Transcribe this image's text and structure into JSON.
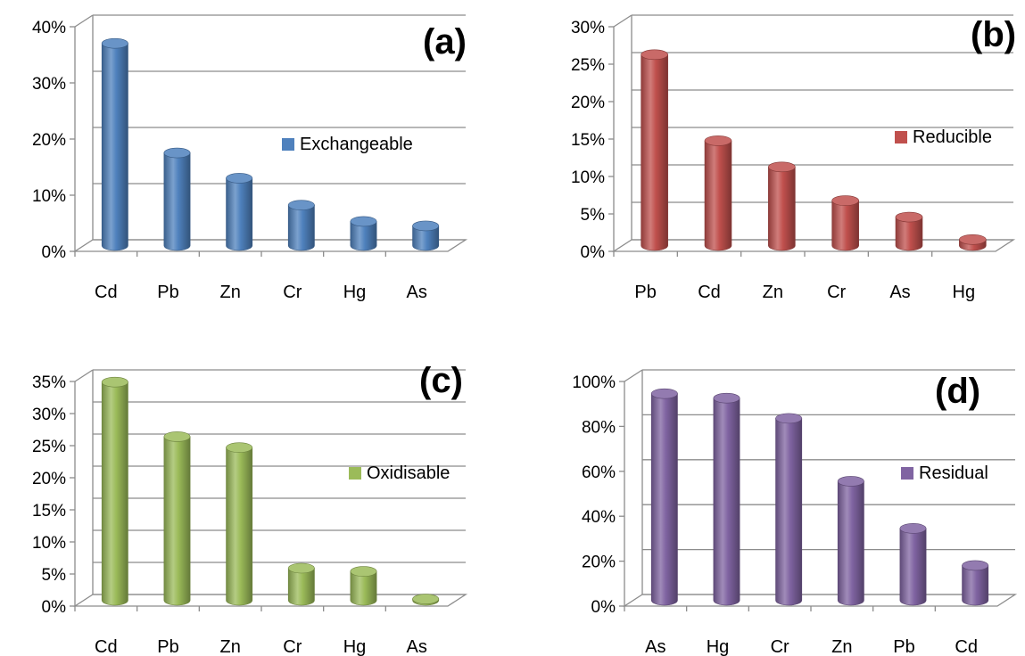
{
  "chart_data": [
    {
      "type": "bar",
      "panel_label": "(a)",
      "series": [
        {
          "name": "Exchangeable",
          "values": [
            36,
            16.5,
            12,
            7.2,
            4.3,
            3.5
          ]
        }
      ],
      "categories": [
        "Cd",
        "Pb",
        "Zn",
        "Cr",
        "Hg",
        "As"
      ],
      "yticks": [
        "0%",
        "10%",
        "20%",
        "30%",
        "40%"
      ],
      "ylim": [
        0,
        40
      ],
      "color": "#4F81BD",
      "grid": true,
      "legend_position": "right"
    },
    {
      "type": "bar",
      "panel_label": "(b)",
      "series": [
        {
          "name": "Reducible",
          "values": [
            25.5,
            14,
            10.5,
            6,
            3.8,
            0.8
          ]
        }
      ],
      "categories": [
        "Pb",
        "Cd",
        "Zn",
        "Cr",
        "As",
        "Hg"
      ],
      "yticks": [
        "0%",
        "5%",
        "10%",
        "15%",
        "20%",
        "25%",
        "30%"
      ],
      "ylim": [
        0,
        30
      ],
      "color": "#C0504D",
      "grid": true,
      "legend_position": "right"
    },
    {
      "type": "bar",
      "panel_label": "(c)",
      "series": [
        {
          "name": "Oxidisable",
          "values": [
            34,
            25.5,
            23.8,
            5,
            4.5,
            0.2
          ]
        }
      ],
      "categories": [
        "Cd",
        "Pb",
        "Zn",
        "Cr",
        "Hg",
        "As"
      ],
      "yticks": [
        "0%",
        "5%",
        "10%",
        "15%",
        "20%",
        "25%",
        "30%",
        "35%"
      ],
      "ylim": [
        0,
        35
      ],
      "color": "#9BBB59",
      "grid": true,
      "legend_position": "right"
    },
    {
      "type": "bar",
      "panel_label": "(d)",
      "series": [
        {
          "name": "Residual",
          "values": [
            92,
            90,
            81,
            53,
            32,
            15.5
          ]
        }
      ],
      "categories": [
        "As",
        "Hg",
        "Cr",
        "Zn",
        "Pb",
        "Cd"
      ],
      "yticks": [
        "0%",
        "20%",
        "40%",
        "60%",
        "80%",
        "100%"
      ],
      "ylim": [
        0,
        100
      ],
      "color": "#8064A2",
      "grid": true,
      "legend_position": "right"
    }
  ]
}
